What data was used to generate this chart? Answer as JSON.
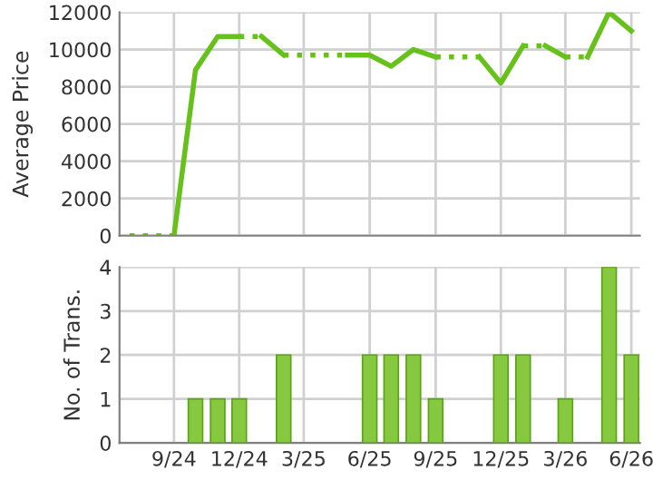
{
  "chart_data": [
    {
      "type": "line",
      "ylabel": "Average Price",
      "xlim": [
        "2024-06-17",
        "2026-06-13"
      ],
      "ylim": [
        0,
        12000
      ],
      "yticks": [
        0,
        2000,
        4000,
        6000,
        8000,
        10000,
        12000
      ],
      "xticks": [
        {
          "value": "2024-09",
          "label": null
        },
        {
          "value": "2024-12",
          "label": null
        },
        {
          "value": "2025-03",
          "label": null
        },
        {
          "value": "2025-06",
          "label": null
        },
        {
          "value": "2025-09",
          "label": null
        },
        {
          "value": "2025-12",
          "label": null
        },
        {
          "value": "2026-03",
          "label": null
        },
        {
          "value": "2026-06",
          "label": null
        }
      ],
      "tick_labels": "y",
      "grid": true,
      "marker": "none",
      "series": [
        {
          "color": "#66c21a",
          "line_style": "dotted",
          "x": [
            "2024-07",
            "2024-08",
            "2024-09"
          ],
          "values": [
            0,
            0,
            0
          ]
        },
        {
          "color": "#66c21a",
          "line_style": "solid",
          "x": [
            "2024-09",
            "2024-10",
            "2024-11",
            "2024-12"
          ],
          "values": [
            0,
            8900,
            10700,
            10700
          ]
        },
        {
          "color": "#66c21a",
          "line_style": "dotted",
          "x": [
            "2024-12",
            "2025-01"
          ],
          "values": [
            10700,
            10700
          ]
        },
        {
          "color": "#66c21a",
          "line_style": "solid",
          "x": [
            "2025-01",
            "2025-02"
          ],
          "values": [
            10700,
            9700
          ]
        },
        {
          "color": "#66c21a",
          "line_style": "dotted",
          "x": [
            "2025-02",
            "2025-03",
            "2025-04",
            "2025-05"
          ],
          "values": [
            9700,
            9700,
            9700,
            9700
          ]
        },
        {
          "color": "#66c21a",
          "line_style": "solid",
          "x": [
            "2025-05",
            "2025-06",
            "2025-07",
            "2025-08",
            "2025-09"
          ],
          "values": [
            9700,
            9700,
            9100,
            10000,
            9600
          ]
        },
        {
          "color": "#66c21a",
          "line_style": "dotted",
          "x": [
            "2025-09",
            "2025-10",
            "2025-11"
          ],
          "values": [
            9600,
            9600,
            9600
          ]
        },
        {
          "color": "#66c21a",
          "line_style": "solid",
          "x": [
            "2025-11",
            "2025-12",
            "2026-01"
          ],
          "values": [
            9600,
            8200,
            10200
          ]
        },
        {
          "color": "#66c21a",
          "line_style": "dotted",
          "x": [
            "2026-01",
            "2026-02"
          ],
          "values": [
            10200,
            10200
          ]
        },
        {
          "color": "#66c21a",
          "line_style": "solid",
          "x": [
            "2026-02",
            "2026-03"
          ],
          "values": [
            10200,
            9600
          ]
        },
        {
          "color": "#66c21a",
          "line_style": "dotted",
          "x": [
            "2026-03",
            "2026-04"
          ],
          "values": [
            9600,
            9600
          ]
        },
        {
          "color": "#66c21a",
          "line_style": "solid",
          "x": [
            "2026-04",
            "2026-05",
            "2026-06"
          ],
          "values": [
            9600,
            12000,
            11000
          ]
        }
      ]
    },
    {
      "type": "bar",
      "ylabel": "No. of Trans.",
      "xlim": [
        "2024-06-17",
        "2026-06-13"
      ],
      "ylim": [
        0,
        4
      ],
      "yticks": [
        0,
        1,
        2,
        3,
        4
      ],
      "xticks": [
        {
          "value": "2024-09",
          "label": "9/24"
        },
        {
          "value": "2024-12",
          "label": "12/24"
        },
        {
          "value": "2025-03",
          "label": "3/25"
        },
        {
          "value": "2025-06",
          "label": "6/25"
        },
        {
          "value": "2025-09",
          "label": "9/25"
        },
        {
          "value": "2025-12",
          "label": "12/25"
        },
        {
          "value": "2026-03",
          "label": "3/26"
        },
        {
          "value": "2026-06",
          "label": "6/26"
        }
      ],
      "grid": true,
      "color": "#86c940",
      "x": [
        "2024-10",
        "2024-11",
        "2024-12",
        "2025-02",
        "2025-06",
        "2025-07",
        "2025-08",
        "2025-09",
        "2025-12",
        "2026-01",
        "2026-03",
        "2026-05",
        "2026-06"
      ],
      "values": [
        1,
        1,
        1,
        2,
        2,
        2,
        2,
        1,
        2,
        2,
        1,
        4,
        2
      ]
    }
  ]
}
